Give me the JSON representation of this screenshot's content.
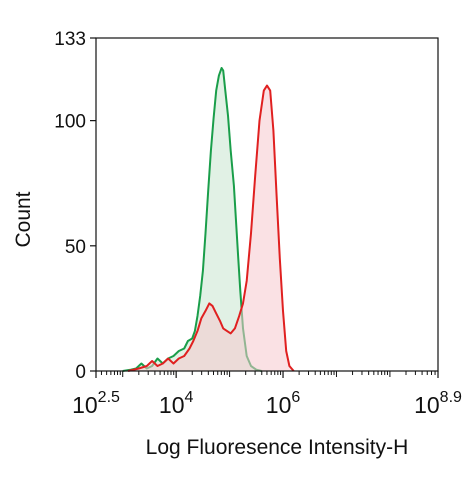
{
  "chart_data": {
    "type": "area",
    "xlabel": "Log Fluoresence Intensity-H",
    "ylabel": "Count",
    "x_scale": "log10",
    "xlim": [
      2.5,
      8.9
    ],
    "ylim": [
      0,
      133
    ],
    "grid": false,
    "legend": "none",
    "y_ticks": [
      {
        "value": 0,
        "label": "0"
      },
      {
        "value": 50,
        "label": "50"
      },
      {
        "value": 100,
        "label": "100"
      },
      {
        "value": 133,
        "label": "133"
      }
    ],
    "x_ticks": [
      {
        "exp": 2.5,
        "base": "10",
        "sup": "2.5"
      },
      {
        "exp": 4,
        "base": "10",
        "sup": "4"
      },
      {
        "exp": 6,
        "base": "10",
        "sup": "6"
      },
      {
        "exp": 8.9,
        "base": "10",
        "sup": "8.9"
      }
    ],
    "series": [
      {
        "color": "#1a9e4a",
        "fill": "#c9e6cf",
        "fill_opacity": 0.55,
        "points": [
          [
            3.0,
            0
          ],
          [
            3.15,
            0.5
          ],
          [
            3.25,
            1
          ],
          [
            3.35,
            3
          ],
          [
            3.45,
            1
          ],
          [
            3.55,
            2
          ],
          [
            3.65,
            5
          ],
          [
            3.75,
            3
          ],
          [
            3.85,
            5
          ],
          [
            3.95,
            6
          ],
          [
            4.05,
            8
          ],
          [
            4.15,
            9
          ],
          [
            4.22,
            12
          ],
          [
            4.3,
            13
          ],
          [
            4.35,
            16
          ],
          [
            4.4,
            22
          ],
          [
            4.45,
            30
          ],
          [
            4.5,
            40
          ],
          [
            4.55,
            55
          ],
          [
            4.6,
            72
          ],
          [
            4.65,
            88
          ],
          [
            4.7,
            101
          ],
          [
            4.75,
            112
          ],
          [
            4.8,
            118
          ],
          [
            4.85,
            121
          ],
          [
            4.88,
            120
          ],
          [
            4.92,
            112
          ],
          [
            4.97,
            102
          ],
          [
            5.02,
            88
          ],
          [
            5.08,
            74
          ],
          [
            5.12,
            60
          ],
          [
            5.16,
            46
          ],
          [
            5.2,
            32
          ],
          [
            5.25,
            17
          ],
          [
            5.32,
            6
          ],
          [
            5.4,
            2
          ],
          [
            5.5,
            0.5
          ],
          [
            5.6,
            0
          ]
        ]
      },
      {
        "color": "#e02020",
        "fill": "#f6c9cd",
        "fill_opacity": 0.55,
        "points": [
          [
            3.1,
            0
          ],
          [
            3.3,
            1
          ],
          [
            3.45,
            2
          ],
          [
            3.55,
            4
          ],
          [
            3.65,
            2
          ],
          [
            3.75,
            3
          ],
          [
            3.85,
            5
          ],
          [
            3.95,
            3
          ],
          [
            4.05,
            5
          ],
          [
            4.15,
            6
          ],
          [
            4.25,
            9
          ],
          [
            4.32,
            12
          ],
          [
            4.4,
            16
          ],
          [
            4.47,
            21
          ],
          [
            4.55,
            24
          ],
          [
            4.62,
            27
          ],
          [
            4.68,
            26
          ],
          [
            4.75,
            23
          ],
          [
            4.82,
            20
          ],
          [
            4.88,
            17
          ],
          [
            4.95,
            16
          ],
          [
            5.02,
            15
          ],
          [
            5.1,
            17
          ],
          [
            5.18,
            22
          ],
          [
            5.25,
            27
          ],
          [
            5.32,
            36
          ],
          [
            5.4,
            55
          ],
          [
            5.48,
            78
          ],
          [
            5.56,
            100
          ],
          [
            5.64,
            112
          ],
          [
            5.7,
            114
          ],
          [
            5.76,
            112
          ],
          [
            5.82,
            96
          ],
          [
            5.88,
            70
          ],
          [
            5.94,
            45
          ],
          [
            6.0,
            24
          ],
          [
            6.06,
            8
          ],
          [
            6.12,
            2
          ],
          [
            6.2,
            0
          ]
        ]
      }
    ]
  }
}
